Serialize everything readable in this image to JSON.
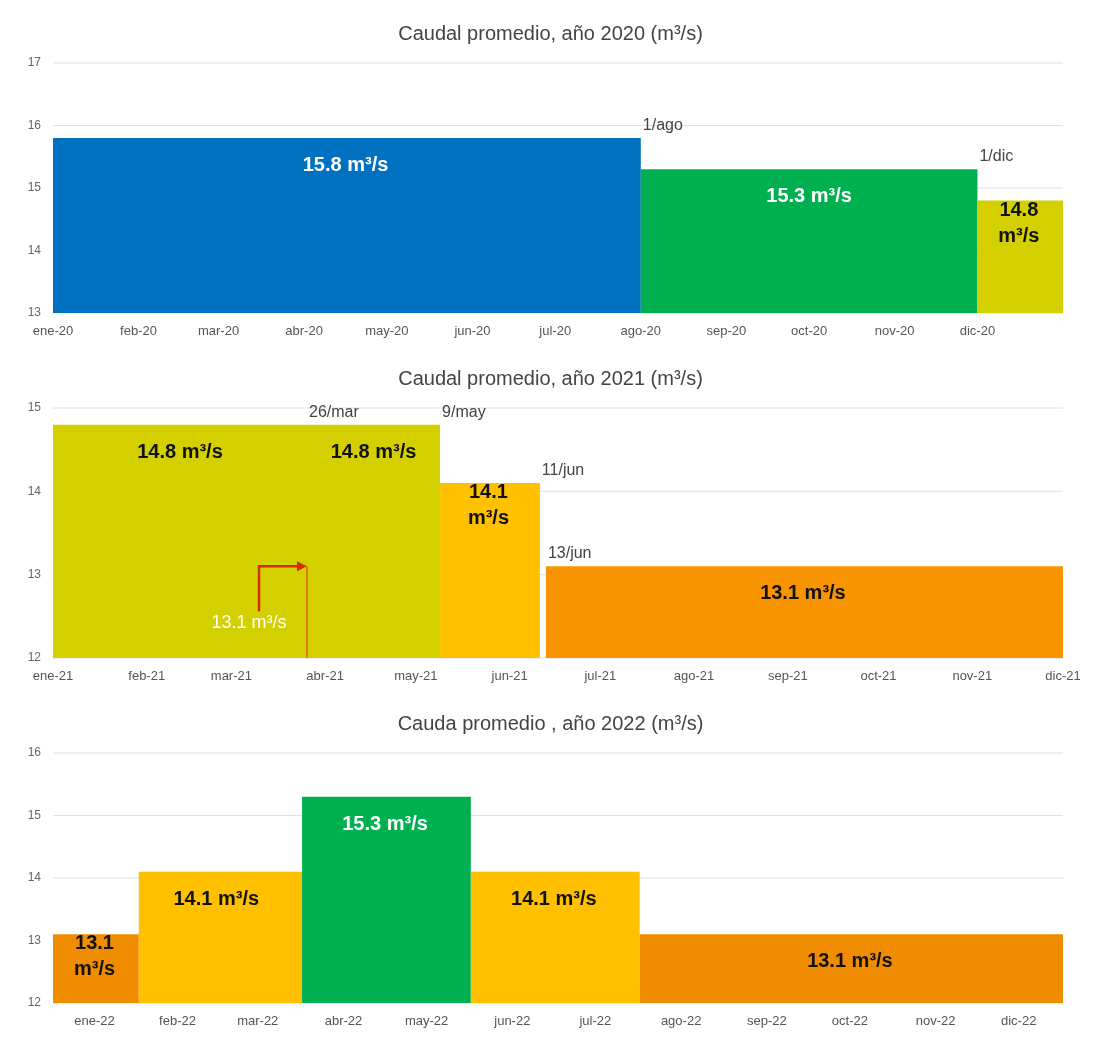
{
  "chart_data": [
    {
      "type": "area",
      "title": "Caudal promedio, año 2020 (m³/s)",
      "xlim": [
        "2020-01-01",
        "2021-01-01"
      ],
      "xticks": [
        {
          "value": "2020-01-01",
          "label": "ene-20"
        },
        {
          "value": "2020-02-01",
          "label": "feb-20"
        },
        {
          "value": "2020-03-01",
          "label": "mar-20"
        },
        {
          "value": "2020-04-01",
          "label": "abr-20"
        },
        {
          "value": "2020-05-01",
          "label": "may-20"
        },
        {
          "value": "2020-06-01",
          "label": "jun-20"
        },
        {
          "value": "2020-07-01",
          "label": "jul-20"
        },
        {
          "value": "2020-08-01",
          "label": "ago-20"
        },
        {
          "value": "2020-09-01",
          "label": "sep-20"
        },
        {
          "value": "2020-10-01",
          "label": "oct-20"
        },
        {
          "value": "2020-11-01",
          "label": "nov-20"
        },
        {
          "value": "2020-12-01",
          "label": "dic-20"
        }
      ],
      "ylim": [
        13,
        17
      ],
      "yticks": [
        13,
        14,
        15,
        16,
        17
      ],
      "grid": "y",
      "series": [
        {
          "type": "area",
          "color": "#0070c0",
          "x": [
            "2020-01-01",
            "2020-04-16",
            "2020-08-01"
          ],
          "values": [
            15.8,
            15.8,
            15.8
          ],
          "value_labels": [
            null,
            "15.8 m³/s",
            null
          ]
        },
        {
          "type": "area",
          "color": "#00b050",
          "x": [
            "2020-08-01",
            "2020-10-01",
            "2020-12-01"
          ],
          "values": [
            15.3,
            15.3,
            15.3
          ],
          "value_labels": [
            null,
            "15.3 m³/s",
            null
          ]
        },
        {
          "type": "area",
          "color": "#d4d000",
          "x": [
            "2020-12-01",
            "2020-12-16",
            "2021-01-01"
          ],
          "values": [
            14.8,
            14.8,
            14.8
          ],
          "value_labels": [
            null,
            "14.8 m³/s",
            null
          ]
        }
      ],
      "annotations": [
        {
          "text": "1/ago",
          "x": "2020-08-01",
          "y": 15.8
        },
        {
          "text": "1/dic",
          "x": "2020-12-01",
          "y": 15.3
        }
      ]
    },
    {
      "type": "area",
      "title": "Caudal promedio, año 2021 (m³/s)",
      "xlim": [
        "2021-01-01",
        "2021-12-01"
      ],
      "xticks": [
        {
          "value": "2021-01-01",
          "label": "ene-21"
        },
        {
          "value": "2021-02-01",
          "label": "feb-21"
        },
        {
          "value": "2021-03-01",
          "label": "mar-21"
        },
        {
          "value": "2021-04-01",
          "label": "abr-21"
        },
        {
          "value": "2021-05-01",
          "label": "may-21"
        },
        {
          "value": "2021-06-01",
          "label": "jun-21"
        },
        {
          "value": "2021-07-01",
          "label": "jul-21"
        },
        {
          "value": "2021-08-01",
          "label": "ago-21"
        },
        {
          "value": "2021-09-01",
          "label": "sep-21"
        },
        {
          "value": "2021-10-01",
          "label": "oct-21"
        },
        {
          "value": "2021-11-01",
          "label": "nov-21"
        },
        {
          "value": "2021-12-01",
          "label": "dic-21"
        }
      ],
      "ylim": [
        12,
        15
      ],
      "yticks": [
        12,
        13,
        14,
        15
      ],
      "grid": "y",
      "series": [
        {
          "type": "area",
          "color": "#d4d000",
          "x": [
            "2021-01-01",
            "2021-02-12",
            "2021-03-26"
          ],
          "values": [
            14.8,
            14.8,
            14.8
          ],
          "value_labels": [
            null,
            "14.8 m³/s",
            null
          ]
        },
        {
          "type": "area",
          "color": "#d4d000",
          "x": [
            "2021-03-26",
            "2021-04-17",
            "2021-05-09"
          ],
          "values": [
            14.8,
            14.8,
            14.8
          ],
          "value_labels": [
            null,
            "14.8 m³/s",
            null
          ]
        },
        {
          "type": "area",
          "color": "#ffc000",
          "x": [
            "2021-05-09",
            "2021-05-25",
            "2021-06-11"
          ],
          "values": [
            14.1,
            14.1,
            14.1
          ],
          "value_labels": [
            null,
            "14.1 m³/s",
            null
          ]
        },
        {
          "type": "area",
          "color": "#f79400",
          "x": [
            "2021-06-13",
            "2021-09-06",
            "2021-12-01"
          ],
          "values": [
            13.1,
            13.1,
            13.1
          ],
          "value_labels": [
            null,
            "13.1 m³/s",
            null
          ]
        }
      ],
      "annotations": [
        {
          "text": "26/mar",
          "x": "2021-03-26",
          "y": 14.8
        },
        {
          "text": "9/may",
          "x": "2021-05-09",
          "y": 14.8
        },
        {
          "text": "11/jun",
          "x": "2021-06-11",
          "y": 14.1
        },
        {
          "text": "13/jun",
          "x": "2021-06-13",
          "y": 13.1
        },
        {
          "text": "13.1 m³/s",
          "x": "2021-03-26",
          "y": 13.1
        }
      ]
    },
    {
      "type": "area",
      "title": "Cauda promedio , año 2022 (m³/s)",
      "xlim": [
        "2022-01-01",
        "2023-01-01"
      ],
      "xticks": [
        {
          "value": "2022-01-16",
          "label": "ene-22"
        },
        {
          "value": "2022-02-15",
          "label": "feb-22"
        },
        {
          "value": "2022-03-16",
          "label": "mar-22"
        },
        {
          "value": "2022-04-16",
          "label": "abr-22"
        },
        {
          "value": "2022-05-16",
          "label": "may-22"
        },
        {
          "value": "2022-06-16",
          "label": "jun-22"
        },
        {
          "value": "2022-07-16",
          "label": "jul-22"
        },
        {
          "value": "2022-08-16",
          "label": "ago-22"
        },
        {
          "value": "2022-09-16",
          "label": "sep-22"
        },
        {
          "value": "2022-10-16",
          "label": "oct-22"
        },
        {
          "value": "2022-11-16",
          "label": "nov-22"
        },
        {
          "value": "2022-12-16",
          "label": "dic-22"
        }
      ],
      "ylim": [
        12,
        16
      ],
      "yticks": [
        12,
        13,
        14,
        15,
        16
      ],
      "grid": "y",
      "series": [
        {
          "type": "area",
          "color": "#f08c00",
          "x": [
            "2022-01-01",
            "2022-01-16",
            "2022-02-01"
          ],
          "values": [
            13.1,
            13.1,
            13.1
          ],
          "value_labels": [
            null,
            "13.1 m³/s",
            null
          ]
        },
        {
          "type": "area",
          "color": "#ffc000",
          "x": [
            "2022-02-01",
            "2022-03-01",
            "2022-04-01"
          ],
          "values": [
            14.1,
            14.1,
            14.1
          ],
          "value_labels": [
            null,
            "14.1 m³/s",
            null
          ]
        },
        {
          "type": "area",
          "color": "#00b050",
          "x": [
            "2022-04-01",
            "2022-05-01",
            "2022-06-01"
          ],
          "values": [
            15.3,
            15.3,
            15.3
          ],
          "value_labels": [
            null,
            "15.3 m³/s",
            null
          ]
        },
        {
          "type": "area",
          "color": "#ffc000",
          "x": [
            "2022-06-01",
            "2022-07-01",
            "2022-08-01"
          ],
          "values": [
            14.1,
            14.1,
            14.1
          ],
          "value_labels": [
            null,
            "14.1 m³/s",
            null
          ]
        },
        {
          "type": "area",
          "color": "#f08c00",
          "x": [
            "2022-08-01",
            "2022-10-16",
            "2023-01-01"
          ],
          "values": [
            13.1,
            13.1,
            13.1
          ],
          "value_labels": [
            null,
            "13.1 m³/s",
            null
          ]
        }
      ]
    }
  ]
}
